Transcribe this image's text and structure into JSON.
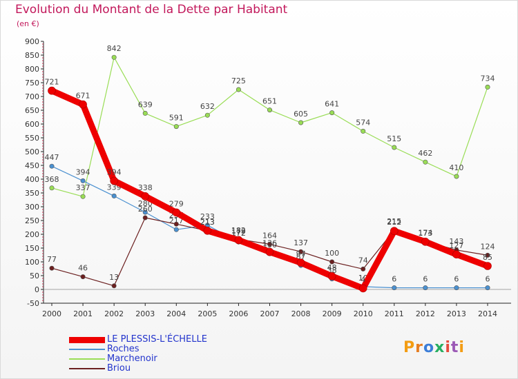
{
  "header": {
    "title": "Evolution du Montant de la Dette par Habitant",
    "subtitle": "(en €)"
  },
  "logo": {
    "text": "Proxiti",
    "colors": [
      "#f39c12",
      "#e67e22",
      "#3b7dd8",
      "#27ae60",
      "#e74c3c",
      "#9b59b6",
      "#f39c12"
    ]
  },
  "chart_data": {
    "type": "line",
    "title": "Evolution du Montant de la Dette par Habitant",
    "subtitle": "(en €)",
    "xlabel": "",
    "ylabel": "",
    "x": [
      "2000",
      "2001",
      "2002",
      "2003",
      "2004",
      "2005",
      "2006",
      "2007",
      "2008",
      "2009",
      "2010",
      "2011",
      "2012",
      "2013",
      "2014"
    ],
    "ylim": [
      -50,
      900
    ],
    "yticks": [
      -50,
      0,
      50,
      100,
      150,
      200,
      250,
      300,
      350,
      400,
      450,
      500,
      550,
      600,
      650,
      700,
      750,
      800,
      850,
      900
    ],
    "grid": false,
    "legend_position": "bottom-left",
    "series": [
      {
        "name": "Marchenoir",
        "color": "#99dd55",
        "values": [
          368,
          337,
          842,
          639,
          591,
          632,
          725,
          651,
          605,
          641,
          574,
          515,
          462,
          410,
          734
        ]
      },
      {
        "name": "Roches",
        "color": "#4a90d0",
        "values": [
          447,
          394,
          339,
          280,
          217,
          233,
          172,
          130,
          87,
          38,
          10,
          6,
          6,
          6,
          6
        ]
      },
      {
        "name": "Briou",
        "color": "#6b1f1f",
        "values": [
          77,
          46,
          13,
          260,
          237,
          213,
          182,
          164,
          137,
          100,
          74,
          215,
          174,
          143,
          124
        ]
      },
      {
        "name": "LE PLESSIS-L'ÉCHELLE",
        "color": "#ee0000",
        "values": [
          721,
          671,
          394,
          338,
          279,
          213,
          179,
          136,
          97,
          48,
          4,
          212,
          173,
          127,
          85
        ]
      }
    ],
    "legend_order": [
      "LE PLESSIS-L'ÉCHELLE",
      "Roches",
      "Marchenoir",
      "Briou"
    ]
  }
}
